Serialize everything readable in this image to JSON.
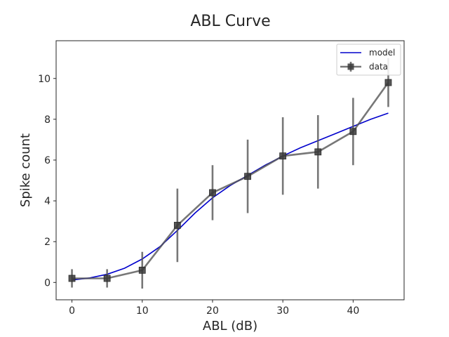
{
  "chart_data": {
    "type": "line",
    "title": "ABL Curve",
    "xlabel": "ABL (dB)",
    "ylabel": "Spike count",
    "xlim": [
      -2.25,
      47.25
    ],
    "ylim": [
      -0.85,
      11.85
    ],
    "xticks": [
      0,
      10,
      20,
      30,
      40
    ],
    "yticks": [
      0,
      2,
      4,
      6,
      8,
      10
    ],
    "grid": false,
    "legend": "top-right",
    "series": [
      {
        "name": "model",
        "kind": "line",
        "color": "#0000cc",
        "x": [
          0,
          2.5,
          5,
          7.5,
          10,
          12.5,
          15,
          17.5,
          20,
          22.5,
          25,
          27.5,
          30,
          32.5,
          35,
          37.5,
          40,
          42.5,
          45
        ],
        "y": [
          0.12,
          0.22,
          0.4,
          0.7,
          1.15,
          1.75,
          2.55,
          3.4,
          4.15,
          4.75,
          5.25,
          5.75,
          6.2,
          6.6,
          6.95,
          7.3,
          7.65,
          8.0,
          8.3
        ]
      },
      {
        "name": "data",
        "kind": "errorbar",
        "color": "#555555",
        "x": [
          0,
          5,
          10,
          15,
          20,
          25,
          30,
          35,
          40,
          45
        ],
        "y": [
          0.2,
          0.2,
          0.6,
          2.8,
          4.4,
          5.2,
          6.2,
          6.4,
          7.4,
          9.8
        ],
        "yerr": [
          0.45,
          0.45,
          0.9,
          1.8,
          1.35,
          1.8,
          1.9,
          1.8,
          1.65,
          1.2
        ]
      }
    ]
  }
}
